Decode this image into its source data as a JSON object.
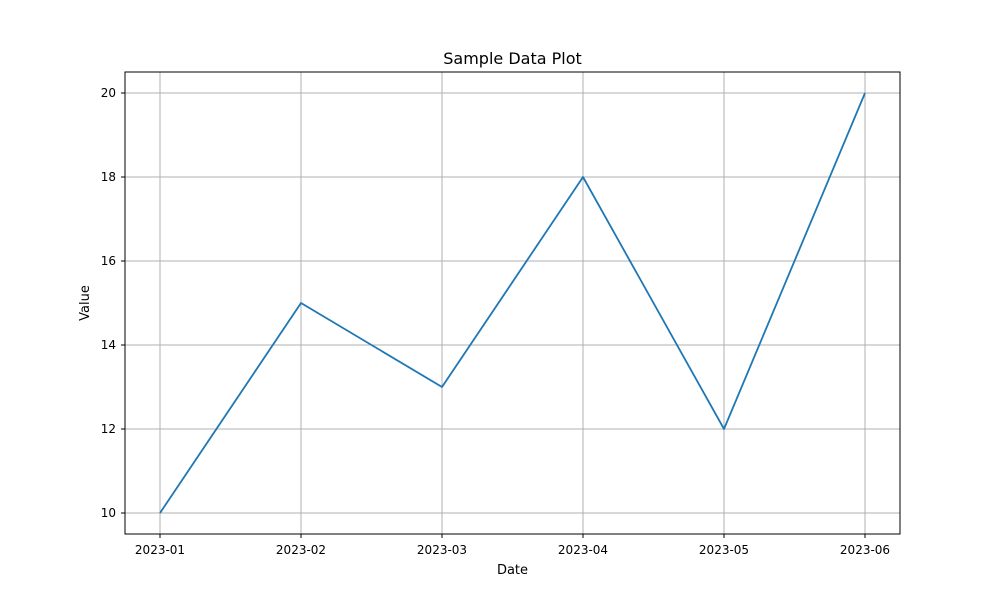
{
  "chart_data": {
    "type": "line",
    "title": "Sample Data Plot",
    "xlabel": "Date",
    "ylabel": "Value",
    "x": [
      "2023-01",
      "2023-02",
      "2023-03",
      "2023-04",
      "2023-05",
      "2023-06"
    ],
    "series": [
      {
        "values": [
          10,
          15,
          13,
          18,
          12,
          20
        ],
        "color": "#1f77b4"
      }
    ],
    "y_ticks": [
      10,
      12,
      14,
      16,
      18,
      20
    ],
    "ylim": [
      9.5,
      20.5
    ],
    "grid": true,
    "grid_color": "#b0b0b0",
    "legend": "none"
  }
}
